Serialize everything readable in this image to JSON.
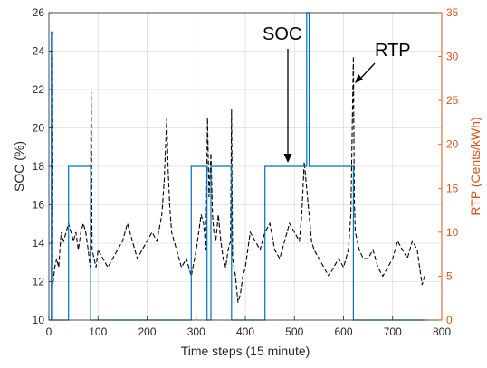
{
  "chart_data": {
    "type": "line",
    "xlabel": "Time steps (15 minute)",
    "ylabel": "SOC (%)",
    "y2label": "RTP (Cents/kWh)",
    "xlim": [
      0,
      800
    ],
    "ylim": [
      10,
      26
    ],
    "y2lim": [
      0,
      35
    ],
    "x_ticks": [
      0,
      100,
      200,
      300,
      400,
      500,
      600,
      700,
      800
    ],
    "y_ticks": [
      10,
      12,
      14,
      16,
      18,
      20,
      22,
      24,
      26
    ],
    "y2_ticks": [
      0,
      5,
      10,
      15,
      20,
      25,
      30,
      35
    ],
    "grid": true,
    "colors": {
      "soc": "#0072bd",
      "rtp": "#000000",
      "right_axis": "#d95319",
      "grid": "#dcdcdc"
    },
    "annotations": [
      {
        "text": "SOC",
        "points_to": [
          480,
          18
        ]
      },
      {
        "text": "RTP",
        "points_to": [
          625,
          22.8
        ]
      }
    ],
    "series": [
      {
        "axis": "left",
        "style": "solid",
        "x": [
          0,
          5,
          5,
          8,
          8,
          40,
          40,
          85,
          85,
          290,
          290,
          322,
          322,
          330,
          330,
          372,
          372,
          440,
          440,
          525,
          525,
          530,
          530,
          620,
          620,
          765
        ],
        "y": [
          10,
          10,
          25,
          25,
          10,
          10,
          18,
          18,
          10,
          10,
          18,
          18,
          10,
          10,
          18,
          18,
          10,
          10,
          18,
          18,
          26,
          26,
          18,
          18,
          10,
          10
        ]
      },
      {
        "axis": "right",
        "style": "dashed",
        "x": [
          5,
          8,
          12,
          16,
          20,
          25,
          30,
          35,
          40,
          45,
          50,
          55,
          60,
          65,
          70,
          75,
          80,
          84,
          86,
          88,
          92,
          96,
          100,
          110,
          120,
          130,
          140,
          150,
          160,
          170,
          180,
          190,
          200,
          210,
          220,
          230,
          235,
          240,
          243,
          246,
          250,
          255,
          260,
          265,
          270,
          280,
          290,
          300,
          305,
          310,
          315,
          320,
          323,
          326,
          330,
          333,
          336,
          340,
          345,
          350,
          355,
          360,
          365,
          370,
          372,
          374,
          380,
          385,
          390,
          395,
          400,
          405,
          410,
          420,
          430,
          440,
          450,
          460,
          470,
          480,
          490,
          500,
          510,
          515,
          520,
          525,
          530,
          535,
          540,
          550,
          560,
          570,
          580,
          590,
          600,
          610,
          615,
          620,
          622,
          624,
          628,
          632,
          640,
          650,
          660,
          670,
          680,
          690,
          700,
          710,
          720,
          730,
          740,
          750,
          755,
          760,
          765
        ],
        "y": [
          30,
          4,
          6,
          7,
          6,
          10,
          9,
          10,
          11,
          10,
          9,
          10,
          8,
          10,
          11,
          10,
          8,
          6,
          26,
          8,
          7,
          6,
          8,
          7,
          6,
          7,
          8,
          9,
          11,
          9,
          7,
          8,
          9,
          10,
          9,
          12,
          16,
          23,
          17,
          13,
          10,
          9,
          8,
          7,
          6,
          7,
          5,
          8,
          10,
          12,
          11,
          8,
          23,
          14,
          19,
          12,
          10,
          9,
          12,
          9,
          7,
          6,
          8,
          9,
          24,
          7,
          5,
          2,
          3,
          5,
          6,
          8,
          10,
          9,
          8,
          10,
          11,
          8,
          7,
          9,
          11,
          10,
          9,
          12,
          18,
          15,
          12,
          9,
          8,
          7,
          6,
          5,
          6,
          7,
          6,
          8,
          12,
          30,
          14,
          10,
          9,
          8,
          7,
          7,
          8,
          6,
          5,
          6,
          7,
          9,
          8,
          7,
          9,
          8,
          6,
          4,
          5
        ]
      }
    ]
  }
}
